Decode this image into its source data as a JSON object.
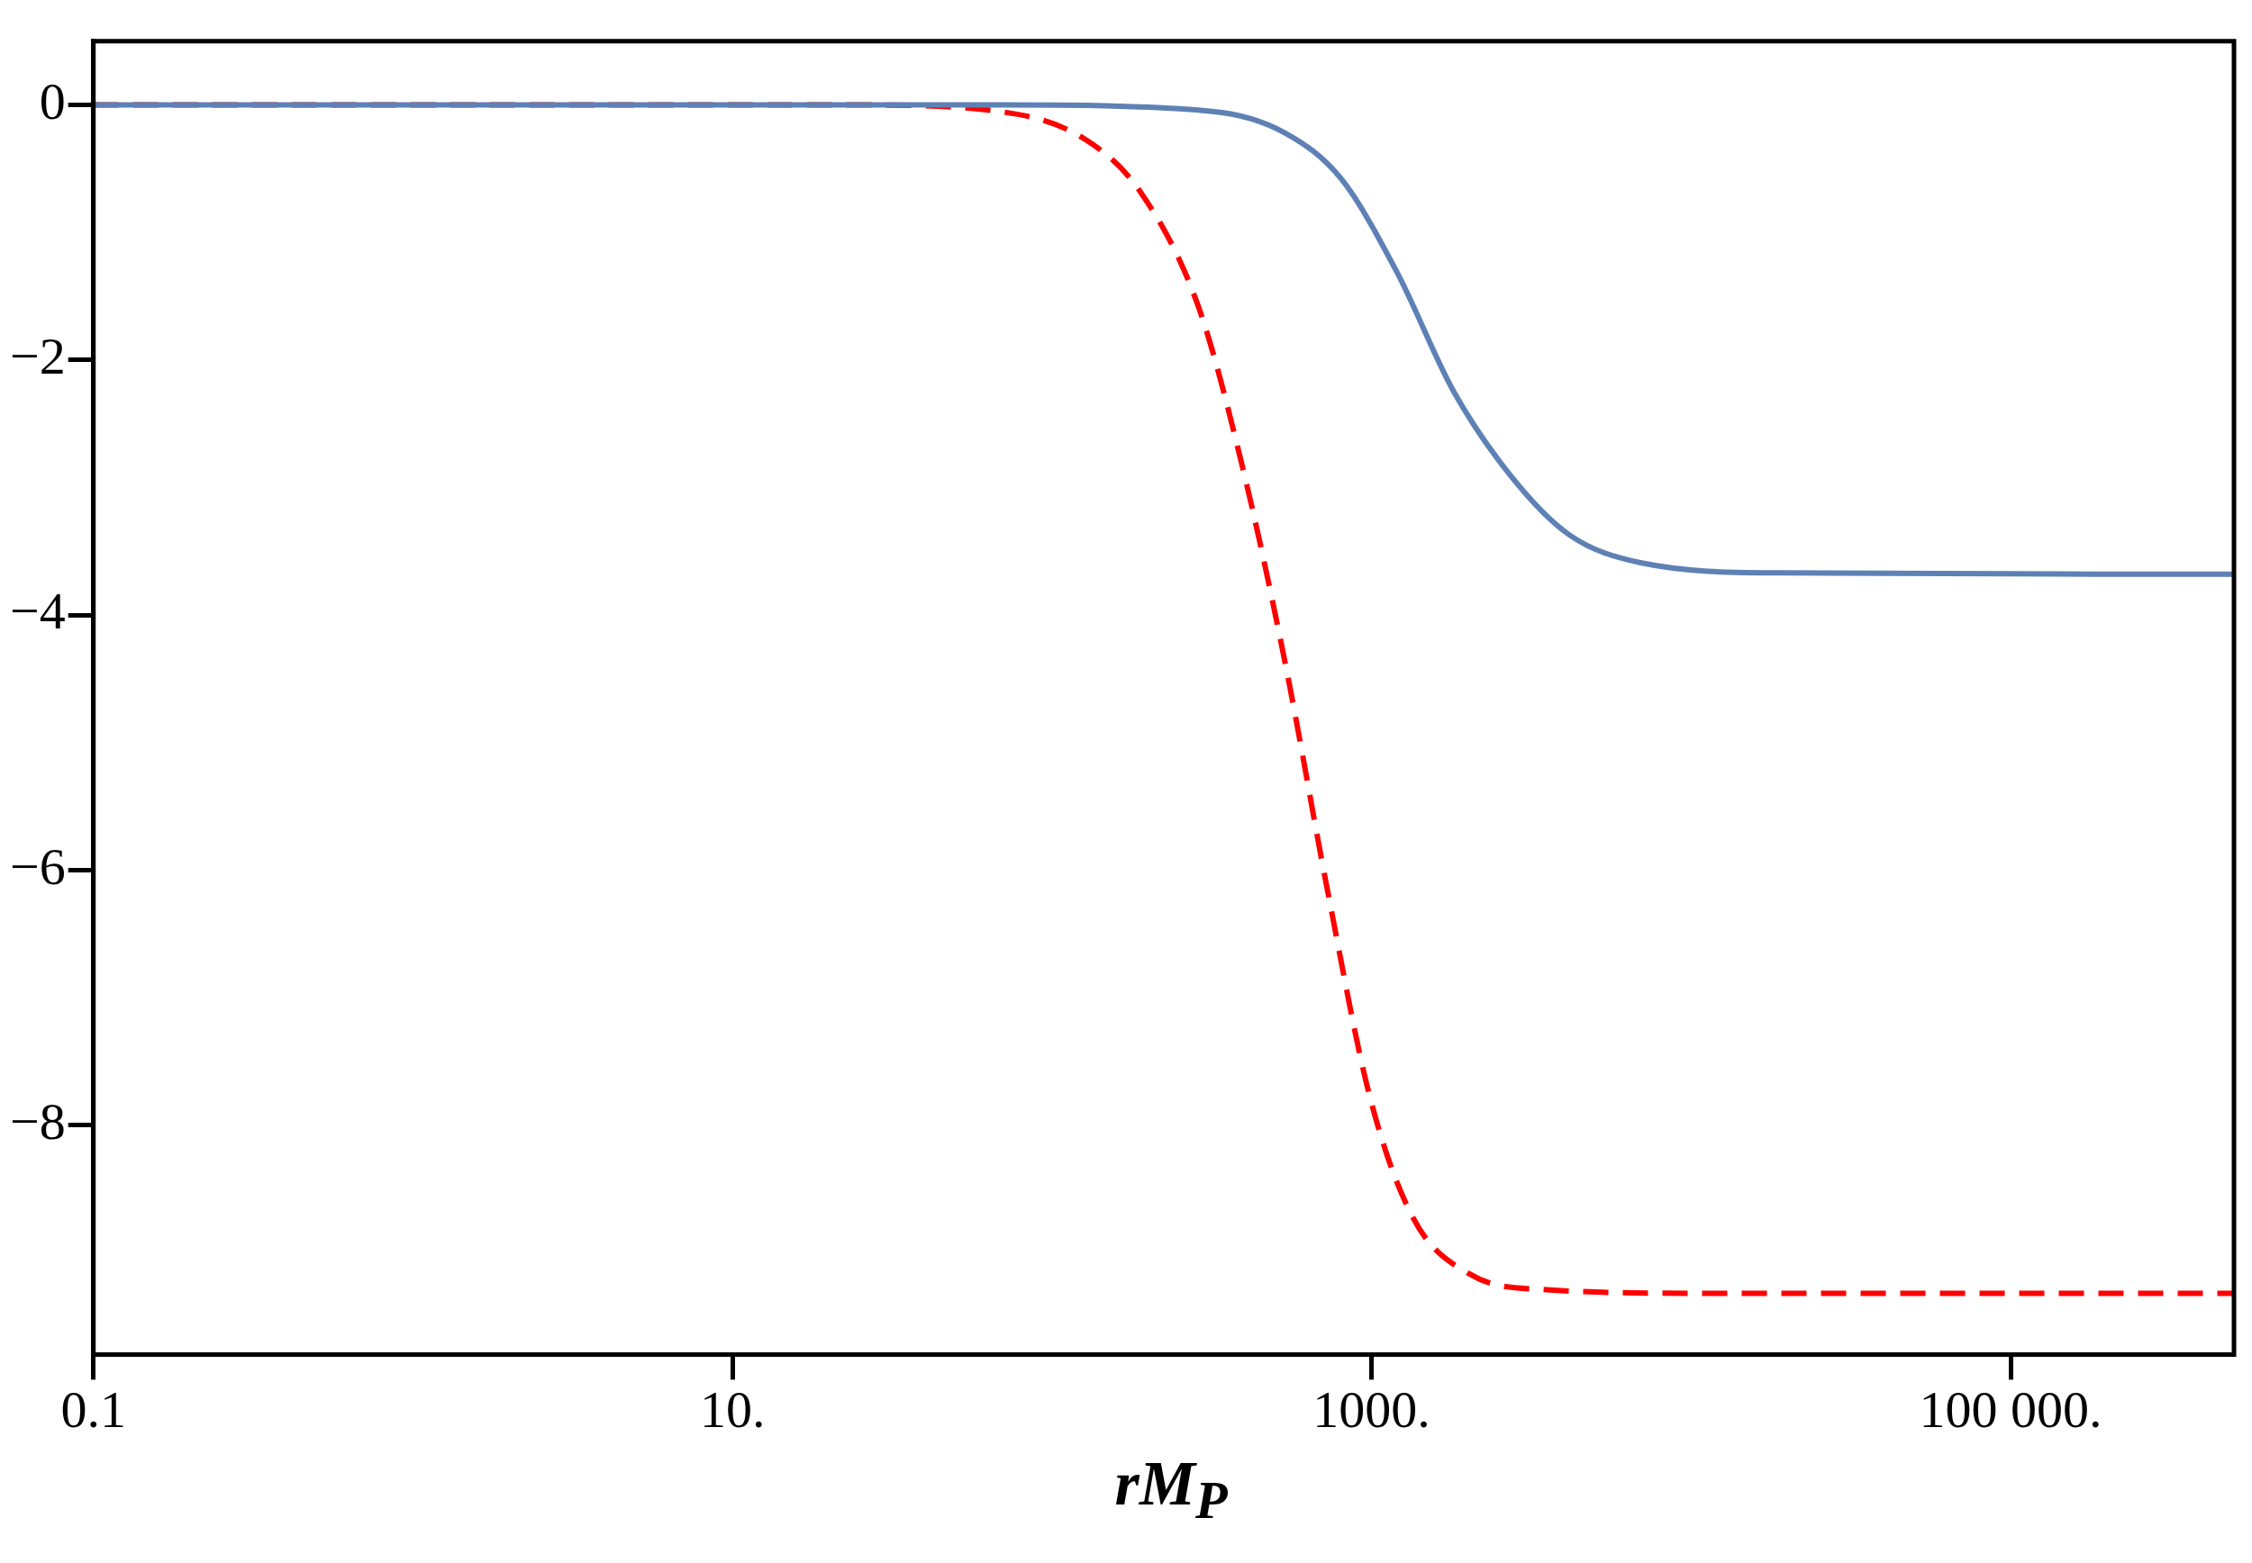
{
  "chart_data": {
    "type": "line",
    "xlabel": "rM$_{P}$",
    "log": "x",
    "xlim": [
      0.1,
      500000
    ],
    "ylim": [
      -9.8,
      0.5
    ],
    "grid": false,
    "legend": false,
    "xticks": [
      {
        "value": 0.1,
        "label": "0.1"
      },
      {
        "value": 10,
        "label": "10."
      },
      {
        "value": 1000,
        "label": "1000."
      },
      {
        "value": 100000,
        "label": "100 000."
      }
    ],
    "yticks": [
      {
        "value": 0,
        "label": "0"
      },
      {
        "value": -2,
        "label": "−2"
      },
      {
        "value": -4,
        "label": "−4"
      },
      {
        "value": -6,
        "label": "−6"
      },
      {
        "value": -8,
        "label": "−8"
      }
    ],
    "series": [
      {
        "color": "#5e81b5",
        "line_style": "solid",
        "x": [
          0.1,
          68,
          316,
          537,
          804,
          1200,
          1810,
          2750,
          4150,
          6950,
          19400,
          500000
        ],
        "values": [
          0,
          0,
          -0.05,
          -0.22,
          -0.58,
          -1.31,
          -2.25,
          -2.92,
          -3.37,
          -3.59,
          -3.67,
          -3.68
        ]
      },
      {
        "color": "#ff0000",
        "line_style": "dashed",
        "x": [
          0.1,
          24.5,
          68,
          127,
          190,
          287,
          392,
          537,
          728,
          988,
          1350,
          2030,
          3400,
          11500,
          500000
        ],
        "values": [
          0,
          0,
          -0.05,
          -0.27,
          -0.69,
          -1.58,
          -2.81,
          -4.38,
          -6.16,
          -7.78,
          -8.73,
          -9.17,
          -9.29,
          -9.32,
          -9.32
        ]
      }
    ]
  }
}
